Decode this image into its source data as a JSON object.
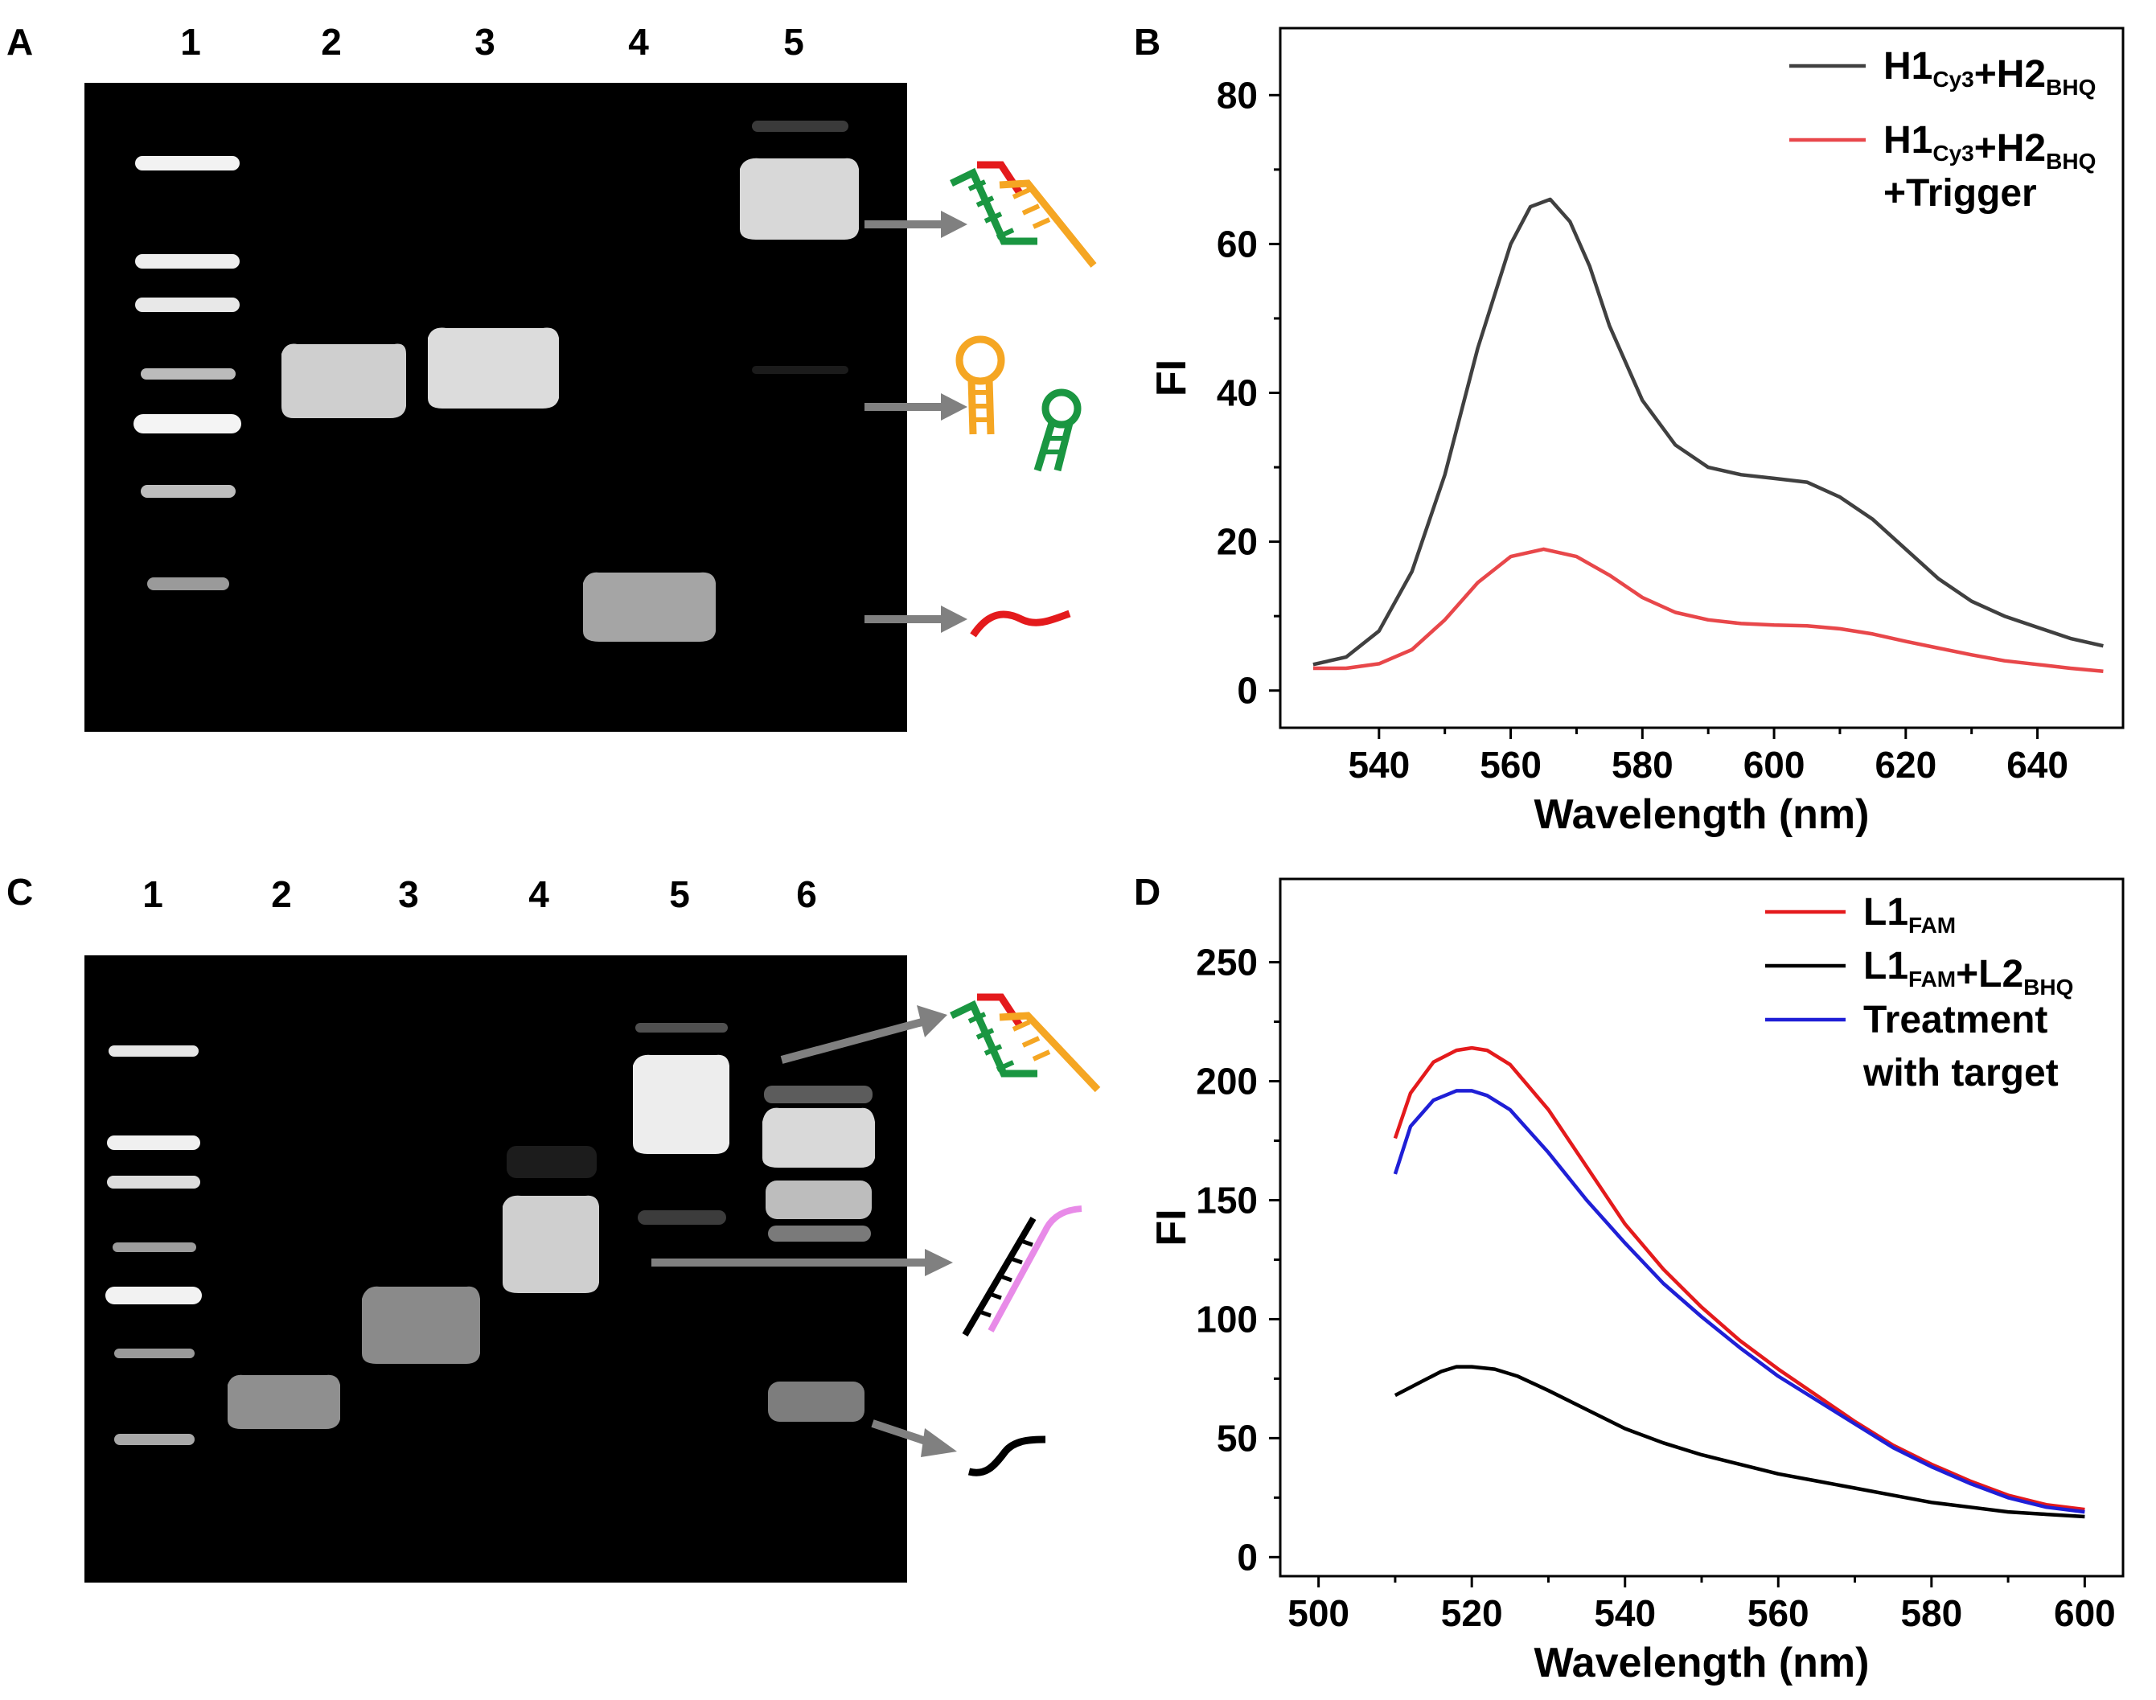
{
  "panels": {
    "A": {
      "label": "A",
      "lanes": [
        "1",
        "2",
        "3",
        "4",
        "5"
      ]
    },
    "B": {
      "label": "B"
    },
    "C": {
      "label": "C",
      "lanes": [
        "1",
        "2",
        "3",
        "4",
        "5",
        "6"
      ]
    },
    "D": {
      "label": "D"
    }
  },
  "colors": {
    "gel_bg": "#000000",
    "arrow": "#808080",
    "dna_red": "#e41a1c",
    "dna_green": "#1a9641",
    "dna_orange": "#f5a623",
    "dna_pink": "#e88be8",
    "dna_black": "#000000"
  },
  "chart_data": [
    {
      "id": "B",
      "type": "line",
      "xlabel": "Wavelength (nm)",
      "ylabel": "FI",
      "xlim": [
        525,
        653
      ],
      "ylim": [
        -5,
        89
      ],
      "xticks": [
        540,
        560,
        580,
        600,
        620,
        640
      ],
      "yticks": [
        0,
        20,
        40,
        60,
        80
      ],
      "legend_position": "top-right",
      "series": [
        {
          "name": "H1Cy3+H2BHQ",
          "legend_main": "H1",
          "legend_sub1": "Cy3",
          "legend_mid": "+H2",
          "legend_sub2": "BHQ",
          "legend_line2": "",
          "color": "#404040",
          "x": [
            530,
            535,
            540,
            545,
            550,
            555,
            560,
            563,
            566,
            569,
            572,
            575,
            580,
            585,
            590,
            595,
            600,
            605,
            610,
            615,
            620,
            625,
            630,
            635,
            640,
            645,
            650
          ],
          "y": [
            3.5,
            4.5,
            8,
            16,
            29,
            46,
            60,
            65,
            66,
            63,
            57,
            49,
            39,
            33,
            30,
            29,
            28.5,
            28,
            26,
            23,
            19,
            15,
            12,
            10,
            8.5,
            7,
            6
          ]
        },
        {
          "name": "H1Cy3+H2BHQ+Trigger",
          "legend_main": "H1",
          "legend_sub1": "Cy3",
          "legend_mid": "+H2",
          "legend_sub2": "BHQ",
          "legend_line2": "+Trigger",
          "color": "#e8474a",
          "x": [
            530,
            535,
            540,
            545,
            550,
            555,
            560,
            565,
            570,
            575,
            580,
            585,
            590,
            595,
            600,
            605,
            610,
            615,
            620,
            625,
            630,
            635,
            640,
            645,
            650
          ],
          "y": [
            3,
            3,
            3.6,
            5.5,
            9.5,
            14.5,
            18,
            19,
            18,
            15.5,
            12.5,
            10.5,
            9.5,
            9,
            8.8,
            8.7,
            8.3,
            7.6,
            6.6,
            5.7,
            4.8,
            4,
            3.5,
            3,
            2.6
          ]
        }
      ]
    },
    {
      "id": "D",
      "type": "line",
      "xlabel": "Wavelength (nm)",
      "ylabel": "FI",
      "xlim": [
        495,
        605
      ],
      "ylim": [
        -8,
        285
      ],
      "xticks": [
        500,
        520,
        540,
        560,
        580,
        600
      ],
      "yticks": [
        0,
        50,
        100,
        150,
        200,
        250
      ],
      "legend_position": "top-right",
      "series": [
        {
          "name": "L1FAM",
          "legend_main": "L1",
          "legend_sub1": "FAM",
          "legend_mid": "",
          "legend_sub2": "",
          "legend_line2": "",
          "color": "#e41a1c",
          "x": [
            510,
            512,
            515,
            518,
            520,
            522,
            525,
            530,
            535,
            540,
            545,
            550,
            555,
            560,
            565,
            570,
            575,
            580,
            585,
            590,
            595,
            600
          ],
          "y": [
            176,
            195,
            208,
            213,
            214,
            213,
            207,
            188,
            164,
            140,
            121,
            105,
            91,
            79,
            68,
            57,
            47,
            39,
            32,
            26,
            22,
            20
          ]
        },
        {
          "name": "L1FAM+L2BHQ",
          "legend_main": "L1",
          "legend_sub1": "FAM",
          "legend_mid": "+L2",
          "legend_sub2": "BHQ",
          "legend_line2": "",
          "color": "#000000",
          "x": [
            510,
            513,
            516,
            518,
            520,
            523,
            526,
            530,
            535,
            540,
            545,
            550,
            555,
            560,
            565,
            570,
            575,
            580,
            585,
            590,
            595,
            600
          ],
          "y": [
            68,
            73,
            78,
            80,
            80,
            79,
            76,
            70,
            62,
            54,
            48,
            43,
            39,
            35,
            32,
            29,
            26,
            23,
            21,
            19,
            18,
            17
          ]
        },
        {
          "name": "Treatment with target",
          "legend_main": "Treatment",
          "legend_sub1": "",
          "legend_mid": "",
          "legend_sub2": "",
          "legend_line2": "with target",
          "color": "#1f1fd6",
          "x": [
            510,
            512,
            515,
            518,
            520,
            522,
            525,
            530,
            535,
            540,
            545,
            550,
            555,
            560,
            565,
            570,
            575,
            580,
            585,
            590,
            595,
            600
          ],
          "y": [
            161,
            181,
            192,
            196,
            196,
            194,
            188,
            170,
            150,
            132,
            115,
            101,
            88,
            76,
            66,
            56,
            46,
            38,
            31,
            25,
            21,
            19
          ]
        }
      ]
    }
  ]
}
